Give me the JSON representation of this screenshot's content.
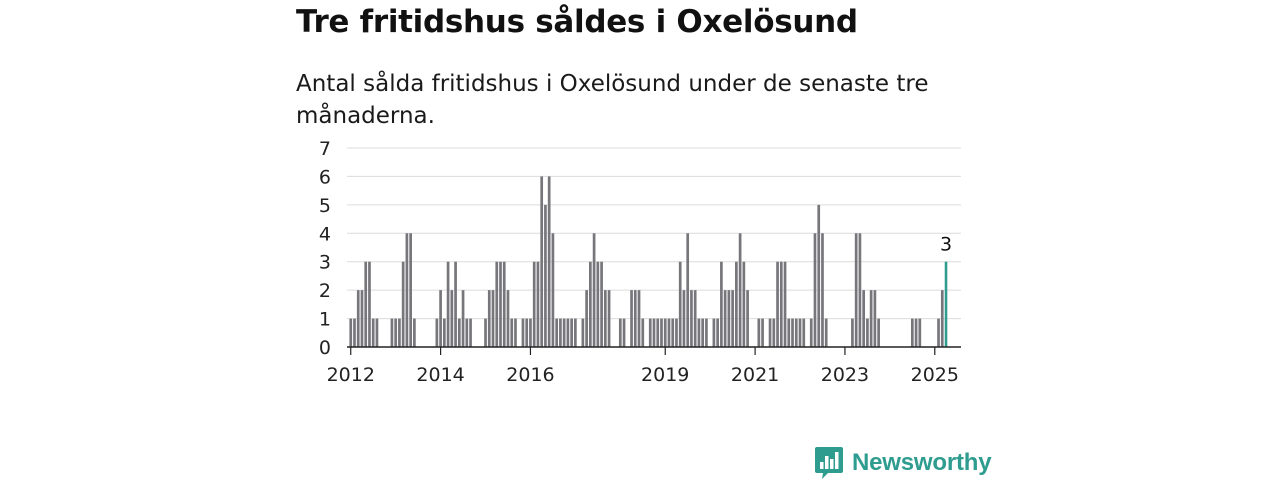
{
  "page": {
    "title": "Tre fritidshus såldes i Oxelösund",
    "subtitle": "Antal sålda fritidshus i Oxelösund under de senaste tre månaderna."
  },
  "brand": {
    "name": "Newsworthy",
    "icon": "newsworthy-logo-icon",
    "color": "#2e9c8e"
  },
  "chart_data": {
    "type": "bar",
    "ylim": [
      0,
      7
    ],
    "yticks": [
      0,
      1,
      2,
      3,
      4,
      5,
      6,
      7
    ],
    "xlim": [
      -1,
      163
    ],
    "xticks": [
      {
        "label": "2012",
        "x": 0
      },
      {
        "label": "2014",
        "x": 24
      },
      {
        "label": "2016",
        "x": 48
      },
      {
        "label": "2019",
        "x": 84
      },
      {
        "label": "2021",
        "x": 108
      },
      {
        "label": "2023",
        "x": 132
      },
      {
        "label": "2025",
        "x": 156
      }
    ],
    "grid": true,
    "bar_color": "#77767b",
    "highlight_color": "#2e9c8e",
    "series": [
      {
        "values": [
          1,
          1,
          2,
          2,
          3,
          3,
          1,
          1,
          0,
          0,
          0,
          1,
          1,
          1,
          3,
          4,
          4,
          1,
          0,
          0,
          0,
          0,
          0,
          1,
          2,
          1,
          3,
          2,
          3,
          1,
          2,
          1,
          1,
          0,
          0,
          0,
          1,
          2,
          2,
          3,
          3,
          3,
          2,
          1,
          1,
          0,
          1,
          1,
          1,
          3,
          3,
          6,
          5,
          6,
          4,
          1,
          1,
          1,
          1,
          1,
          1,
          0,
          1,
          2,
          3,
          4,
          3,
          3,
          2,
          2,
          0,
          0,
          1,
          1,
          0,
          2,
          2,
          2,
          1,
          0,
          1,
          1,
          1,
          1,
          1,
          1,
          1,
          1,
          3,
          2,
          4,
          2,
          2,
          1,
          1,
          1,
          0,
          1,
          1,
          3,
          2,
          2,
          2,
          3,
          4,
          3,
          2,
          0,
          0,
          1,
          1,
          0,
          1,
          1,
          3,
          3,
          3,
          1,
          1,
          1,
          1,
          1,
          0,
          1,
          4,
          5,
          4,
          1,
          0,
          0,
          0,
          0,
          0,
          0,
          1,
          4,
          4,
          2,
          1,
          2,
          2,
          1,
          0,
          0,
          0,
          0,
          0,
          0,
          0,
          0,
          1,
          1,
          1,
          0,
          0,
          0,
          0,
          1,
          2,
          3
        ]
      }
    ],
    "annotation": {
      "label": "3",
      "x": 159
    }
  }
}
